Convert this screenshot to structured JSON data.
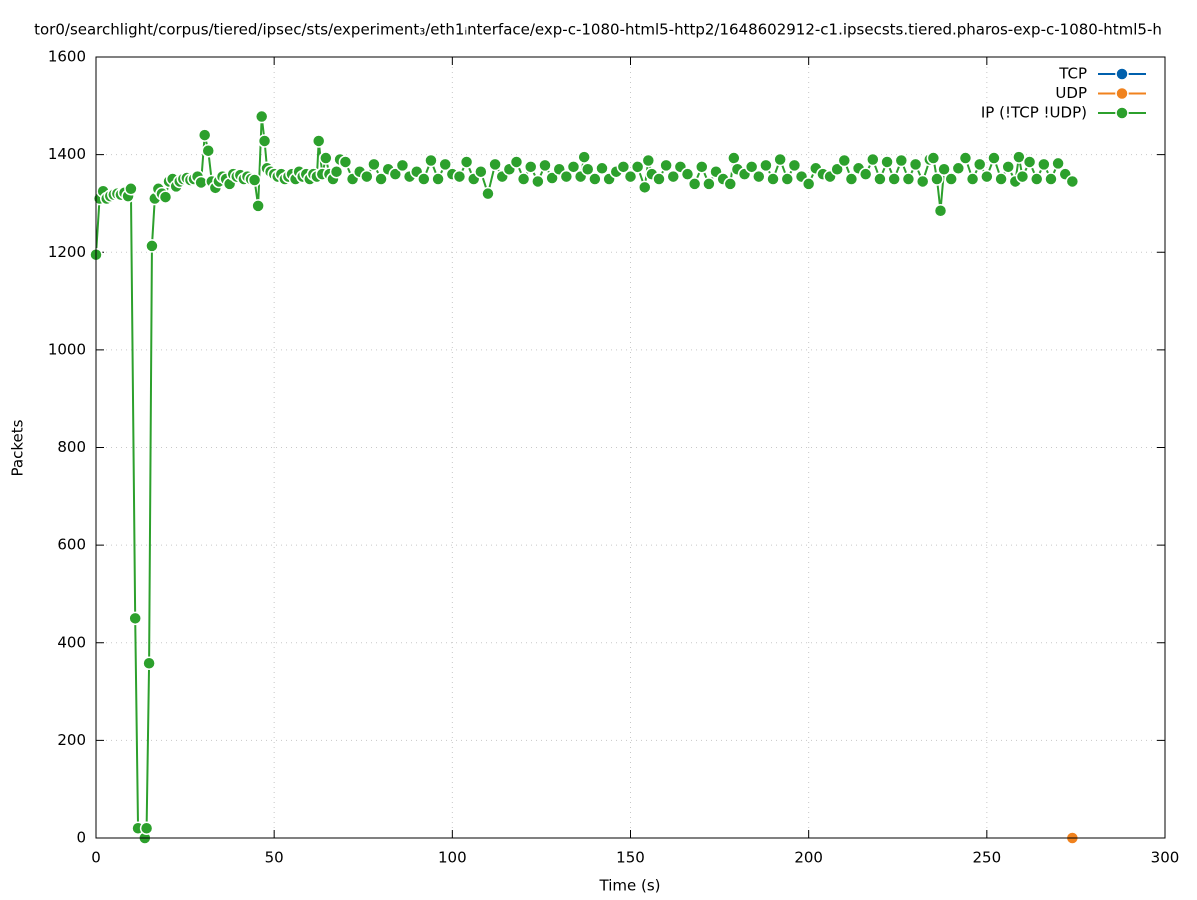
{
  "chart_data": {
    "type": "line",
    "title": "tor0/searchlight/corpus/tiered/ipsec/sts/experiment₃/eth1ᵢnterface/exp-c-1080-html5-http2/1648602912-c1.ipsecsts.tiered.pharos-exp-c-1080-html5-h",
    "x_label": "Time (s)",
    "y_label": "Packets",
    "xlim": [
      0,
      300
    ],
    "xticks": [
      0,
      50,
      100,
      150,
      200,
      250,
      300
    ],
    "ylim": [
      0,
      1600
    ],
    "yticks": [
      0,
      200,
      400,
      600,
      800,
      1000,
      1200,
      1400,
      1600
    ],
    "grid": true,
    "legend": "top-right",
    "series": [
      {
        "name": "TCP",
        "color": "#0060ad",
        "x": [
          274
        ],
        "values": [
          0
        ]
      },
      {
        "name": "UDP",
        "color": "#f0821e",
        "x": [
          274
        ],
        "values": [
          0
        ]
      },
      {
        "name": "IP (!TCP  !UDP)",
        "color": "#2ca02c",
        "x": [
          0,
          1,
          2,
          3,
          4,
          5,
          6,
          7,
          8,
          9,
          9.8,
          11,
          11.8,
          13.7,
          14.2,
          14.9,
          15.7,
          16.5,
          17.5,
          18.5,
          19.5,
          20.5,
          21.5,
          22.5,
          23.5,
          24.5,
          25.5,
          26.5,
          27.5,
          28.5,
          29.5,
          30.5,
          31.5,
          32.5,
          33.5,
          34.5,
          35.5,
          36.5,
          37.5,
          38.5,
          39.5,
          40.5,
          41.5,
          42.5,
          43.5,
          44.5,
          45.5,
          46.5,
          47.3,
          48,
          49,
          50,
          51,
          52,
          53,
          54,
          55,
          56,
          57,
          58,
          59,
          60,
          61,
          62,
          62.5,
          63.5,
          64.5,
          65.5,
          66.5,
          67.5,
          68.5,
          70,
          72,
          74,
          76,
          78,
          80,
          82,
          84,
          86,
          88,
          90,
          92,
          94,
          96,
          98,
          100,
          102,
          104,
          106,
          108,
          110,
          112,
          114,
          116,
          118,
          120,
          122,
          124,
          126,
          128,
          130,
          132,
          134,
          136,
          137,
          138,
          140,
          142,
          144,
          146,
          148,
          150,
          152,
          154,
          155,
          156,
          158,
          160,
          162,
          164,
          166,
          168,
          170,
          172,
          174,
          176,
          178,
          179,
          180,
          182,
          184,
          186,
          188,
          190,
          192,
          194,
          196,
          198,
          200,
          202,
          204,
          206,
          208,
          210,
          212,
          214,
          216,
          218,
          220,
          222,
          224,
          226,
          228,
          230,
          232,
          234,
          235,
          236,
          237,
          238,
          240,
          242,
          244,
          246,
          248,
          250,
          252,
          254,
          256,
          258,
          259,
          260,
          262,
          264,
          266,
          268,
          270,
          272,
          274
        ],
        "values": [
          1195,
          1310,
          1325,
          1310,
          1315,
          1318,
          1320,
          1318,
          1322,
          1315,
          1330,
          450,
          20,
          0,
          20,
          358,
          1213,
          1310,
          1330,
          1320,
          1313,
          1345,
          1350,
          1335,
          1345,
          1350,
          1352,
          1348,
          1350,
          1355,
          1343,
          1440,
          1408,
          1345,
          1332,
          1345,
          1355,
          1350,
          1340,
          1360,
          1355,
          1358,
          1350,
          1355,
          1350,
          1348,
          1295,
          1478,
          1428,
          1372,
          1365,
          1360,
          1355,
          1360,
          1350,
          1355,
          1360,
          1350,
          1365,
          1355,
          1360,
          1350,
          1360,
          1355,
          1428,
          1360,
          1393,
          1360,
          1350,
          1365,
          1390,
          1385,
          1350,
          1365,
          1355,
          1380,
          1350,
          1370,
          1360,
          1378,
          1355,
          1365,
          1350,
          1388,
          1350,
          1380,
          1360,
          1355,
          1385,
          1350,
          1365,
          1320,
          1380,
          1355,
          1370,
          1385,
          1350,
          1375,
          1345,
          1378,
          1352,
          1370,
          1355,
          1375,
          1355,
          1395,
          1370,
          1350,
          1372,
          1350,
          1365,
          1375,
          1355,
          1375,
          1333,
          1388,
          1360,
          1350,
          1378,
          1355,
          1375,
          1360,
          1340,
          1375,
          1340,
          1365,
          1350,
          1340,
          1393,
          1370,
          1360,
          1375,
          1355,
          1378,
          1350,
          1390,
          1350,
          1378,
          1355,
          1340,
          1372,
          1360,
          1355,
          1370,
          1388,
          1350,
          1372,
          1360,
          1390,
          1350,
          1385,
          1350,
          1388,
          1350,
          1380,
          1345,
          1390,
          1393,
          1350,
          1285,
          1370,
          1350,
          1372,
          1393,
          1350,
          1380,
          1355,
          1393,
          1350,
          1375,
          1345,
          1395,
          1355,
          1385,
          1350,
          1380,
          1350,
          1382,
          1360,
          1345
        ]
      }
    ]
  }
}
